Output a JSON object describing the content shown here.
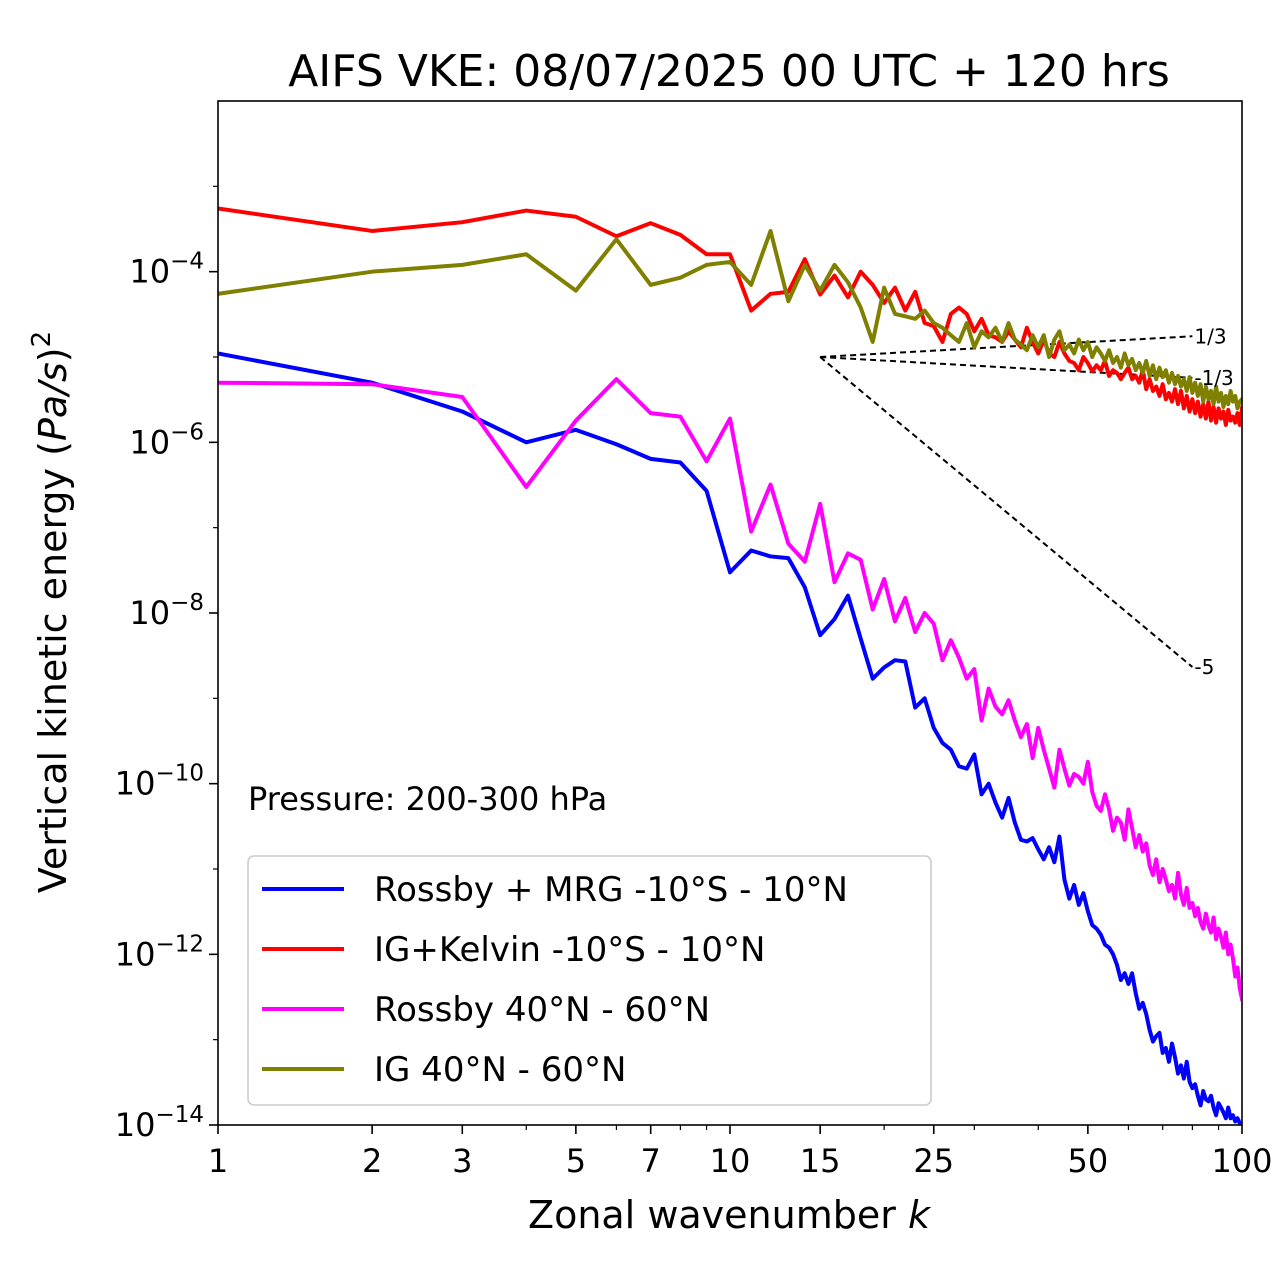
{
  "chart_data": {
    "type": "line",
    "title": "AIFS VKE: 08/07/2025 00 UTC + 120 hrs",
    "xlabel_text": "Zonal wavenumber ",
    "xlabel_var": "k",
    "ylabel_text": "Vertical kinetic energy (",
    "ylabel_var": "Pa/s",
    "ylabel_close": ")",
    "ylabel_exp": "2",
    "annotation": "Pressure: 200-300 hPa",
    "xscale": "log",
    "yscale": "log",
    "xlim": [
      1,
      100
    ],
    "ylim": [
      1e-14,
      0.01
    ],
    "x_ticks": [
      1,
      2,
      3,
      5,
      7,
      10,
      15,
      25,
      50,
      100
    ],
    "x_tick_labels": [
      "1",
      "2",
      "3",
      "5",
      "7",
      "10",
      "15",
      "25",
      "50",
      "100"
    ],
    "y_ticks": [
      {
        "value": 0.0001,
        "base": "10",
        "exp": "−4"
      },
      {
        "value": 1e-06,
        "base": "10",
        "exp": "−6"
      },
      {
        "value": 1e-08,
        "base": "10",
        "exp": "−8"
      },
      {
        "value": 1e-10,
        "base": "10",
        "exp": "−10"
      },
      {
        "value": 1e-12,
        "base": "10",
        "exp": "−12"
      },
      {
        "value": 1e-14,
        "base": "10",
        "exp": "−14"
      }
    ],
    "legend_position": "lower-left",
    "grid": false,
    "series": [
      {
        "name": "Rossby + MRG -10°S - 10°N",
        "color": "#0000ff",
        "x": [
          1,
          2,
          3,
          4,
          5,
          6,
          7,
          8,
          9,
          10,
          11,
          12,
          13,
          14,
          15,
          16,
          17,
          18,
          19,
          20,
          21,
          22,
          23,
          24,
          25,
          26,
          27,
          28,
          29,
          30,
          31,
          32,
          33,
          34,
          35,
          36,
          37,
          38,
          39,
          40,
          41,
          42,
          43,
          44,
          45,
          46,
          47,
          48,
          49,
          50,
          51,
          52,
          53,
          54,
          55,
          56,
          57,
          58,
          59,
          60,
          61,
          62,
          63,
          64,
          65,
          66,
          67,
          68,
          69,
          70,
          71,
          72,
          73,
          74,
          75,
          76,
          77,
          78,
          79,
          80,
          81,
          82,
          83,
          84,
          85,
          86,
          87,
          88,
          89,
          90,
          91,
          92,
          93,
          94,
          95,
          96,
          97,
          98,
          99,
          100
        ],
        "y": [
          1.1e-05,
          5e-06,
          2.3e-06,
          1e-06,
          1.4e-06,
          9.5e-07,
          6.4e-07,
          5.8e-07,
          2.7e-07,
          3e-08,
          5.4e-08,
          4.6e-08,
          4.4e-08,
          2e-08,
          5.5e-09,
          8.5e-09,
          1.6e-08,
          5e-09,
          1.7e-09,
          2.3e-09,
          2.8e-09,
          2.7e-09,
          7.8e-10,
          1e-09,
          4.5e-10,
          3e-10,
          2.5e-10,
          1.6e-10,
          1.5e-10,
          2.2e-10,
          7.5e-11,
          1e-10,
          6e-11,
          4e-11,
          6.8e-11,
          3.5e-11,
          2.2e-11,
          2.1e-11,
          2.3e-11,
          1.7e-11,
          1.3e-11,
          1.8e-11,
          1.2e-11,
          2.4e-11,
          7.5e-12,
          4.5e-12,
          6.5e-12,
          3.8e-12,
          5.2e-12,
          3.2e-12,
          2.2e-12,
          2e-12,
          1.7e-12,
          1.3e-12,
          1.2e-12,
          1e-12,
          7.5e-13,
          5e-13,
          6e-13,
          4.5e-13,
          6e-13,
          3.5e-13,
          2.3e-13,
          2.7e-13,
          2e-13,
          1.3e-13,
          9.5e-14,
          1.1e-13,
          1.2e-13,
          7e-14,
          8e-14,
          5.5e-14,
          9e-14,
          6.2e-14,
          4e-14,
          5e-14,
          3.5e-14,
          5.5e-14,
          3.2e-14,
          2.7e-14,
          3e-14,
          2.2e-14,
          1.7e-14,
          2.5e-14,
          2e-14,
          1.9e-14,
          2.2e-14,
          1.6e-14,
          1.3e-14,
          1.8e-14,
          1.6e-14,
          1.4e-14,
          1.2e-14,
          1.6e-14,
          1.2e-14,
          1.3e-14,
          1.1e-14,
          1.2e-14,
          1.05e-14,
          1e-14
        ]
      },
      {
        "name": "IG+Kelvin -10°S - 10°N",
        "color": "#ff0000",
        "x": [
          1,
          2,
          3,
          4,
          5,
          6,
          7,
          8,
          9,
          10,
          11,
          12,
          13,
          14,
          15,
          16,
          17,
          18,
          19,
          20,
          21,
          22,
          23,
          24,
          25,
          26,
          27,
          28,
          29,
          30,
          31,
          32,
          33,
          34,
          35,
          36,
          37,
          38,
          39,
          40,
          41,
          42,
          43,
          44,
          45,
          46,
          47,
          48,
          49,
          50,
          51,
          52,
          53,
          54,
          55,
          56,
          57,
          58,
          59,
          60,
          61,
          62,
          63,
          64,
          65,
          66,
          67,
          68,
          69,
          70,
          71,
          72,
          73,
          74,
          75,
          76,
          77,
          78,
          79,
          80,
          81,
          82,
          83,
          84,
          85,
          86,
          87,
          88,
          89,
          90,
          91,
          92,
          93,
          94,
          95,
          96,
          97,
          98,
          99,
          100
        ],
        "y": [
          0.00055,
          0.0003,
          0.00038,
          0.00052,
          0.00044,
          0.00026,
          0.00037,
          0.00027,
          0.00016,
          0.00016,
          3.5e-05,
          5.5e-05,
          5.8e-05,
          0.00014,
          5.4e-05,
          9e-05,
          5e-05,
          0.0001,
          7e-05,
          4.3e-05,
          6.5e-05,
          3.5e-05,
          5.8e-05,
          2.5e-05,
          2.3e-05,
          1.5e-05,
          3.2e-05,
          3.8e-05,
          3.2e-05,
          2e-05,
          2.8e-05,
          1.8e-05,
          1.7e-05,
          1.5e-05,
          2e-05,
          1.6e-05,
          1.3e-05,
          2.2e-05,
          1.5e-05,
          1.1e-05,
          1.6e-05,
          1.1e-05,
          1e-05,
          1.5e-05,
          1.1e-05,
          9e-06,
          8.5e-06,
          7e-06,
          1e-05,
          8.5e-06,
          6.8e-06,
          8e-06,
          7e-06,
          9e-06,
          6e-06,
          7e-06,
          6.5e-06,
          5.5e-06,
          6.5e-06,
          7.5e-06,
          5.5e-06,
          6e-06,
          5e-06,
          7e-06,
          4.2e-06,
          5.5e-06,
          4e-06,
          4.5e-06,
          3.5e-06,
          4.8e-06,
          3.2e-06,
          3.8e-06,
          3e-06,
          4.2e-06,
          2.8e-06,
          4e-06,
          2.5e-06,
          3.5e-06,
          2.3e-06,
          3.2e-06,
          2.2e-06,
          3e-06,
          2e-06,
          2.8e-06,
          1.9e-06,
          3e-06,
          1.8e-06,
          2.6e-06,
          1.7e-06,
          2.5e-06,
          1.9e-06,
          2.3e-06,
          1.6e-06,
          2.4e-06,
          1.8e-06,
          2e-06,
          1.7e-06,
          2.2e-06,
          1.6e-06,
          2.5e-06
        ]
      },
      {
        "name": "Rossby 40°N - 60°N",
        "color": "#ff00ff",
        "x": [
          1,
          2,
          3,
          4,
          5,
          6,
          7,
          8,
          9,
          10,
          11,
          12,
          13,
          14,
          15,
          16,
          17,
          18,
          19,
          20,
          21,
          22,
          23,
          24,
          25,
          26,
          27,
          28,
          29,
          30,
          31,
          32,
          33,
          34,
          35,
          36,
          37,
          38,
          39,
          40,
          41,
          42,
          43,
          44,
          45,
          46,
          47,
          48,
          49,
          50,
          51,
          52,
          53,
          54,
          55,
          56,
          57,
          58,
          59,
          60,
          61,
          62,
          63,
          64,
          65,
          66,
          67,
          68,
          69,
          70,
          71,
          72,
          73,
          74,
          75,
          76,
          77,
          78,
          79,
          80,
          81,
          82,
          83,
          84,
          85,
          86,
          87,
          88,
          89,
          90,
          91,
          92,
          93,
          94,
          95,
          96,
          97,
          98,
          99,
          100
        ],
        "y": [
          5e-06,
          4.8e-06,
          3.4e-06,
          3e-07,
          1.8e-06,
          5.5e-06,
          2.2e-06,
          2e-06,
          6e-07,
          1.9e-06,
          9e-08,
          3.2e-07,
          6.5e-08,
          4e-08,
          1.9e-07,
          2.3e-08,
          5e-08,
          4.2e-08,
          1.1e-08,
          2.5e-08,
          8e-09,
          1.5e-08,
          6e-09,
          1e-08,
          7.5e-09,
          2.8e-09,
          4.8e-09,
          3e-09,
          1.7e-09,
          2.2e-09,
          5.5e-10,
          1.3e-09,
          8e-10,
          6.5e-10,
          9.5e-10,
          5.5e-10,
          3.5e-10,
          5e-10,
          2e-10,
          4.5e-10,
          2.5e-10,
          1.5e-10,
          9e-11,
          2.5e-10,
          1.5e-10,
          9.5e-11,
          1.3e-10,
          1.2e-10,
          1e-10,
          1.8e-10,
          8e-11,
          5.5e-11,
          4.8e-11,
          7.5e-11,
          5e-11,
          2.8e-11,
          4e-11,
          3.5e-11,
          2.2e-11,
          5e-11,
          3e-11,
          1.8e-11,
          2.5e-11,
          1.6e-11,
          2e-11,
          1.1e-11,
          8.5e-12,
          1.3e-11,
          7e-12,
          1e-11,
          7.5e-12,
          5.5e-12,
          6.5e-12,
          4.5e-12,
          9e-12,
          5e-12,
          3.8e-12,
          6e-12,
          3.5e-12,
          4e-12,
          2.8e-12,
          3.5e-12,
          2.4e-12,
          2e-12,
          3e-12,
          2.2e-12,
          1.8e-12,
          2.7e-12,
          1.5e-12,
          2e-12,
          1.6e-12,
          1.2e-12,
          1.8e-12,
          1e-12,
          1.3e-12,
          9e-13,
          5.5e-13,
          7e-13,
          4e-13,
          3e-13
        ]
      },
      {
        "name": "IG 40°N - 60°N",
        "color": "#808000",
        "x": [
          1,
          2,
          3,
          4,
          5,
          6,
          7,
          8,
          9,
          10,
          11,
          12,
          13,
          14,
          15,
          16,
          17,
          18,
          19,
          20,
          21,
          22,
          23,
          24,
          25,
          26,
          27,
          28,
          29,
          30,
          31,
          32,
          33,
          34,
          35,
          36,
          37,
          38,
          39,
          40,
          41,
          42,
          43,
          44,
          45,
          46,
          47,
          48,
          49,
          50,
          51,
          52,
          53,
          54,
          55,
          56,
          57,
          58,
          59,
          60,
          61,
          62,
          63,
          64,
          65,
          66,
          67,
          68,
          69,
          70,
          71,
          72,
          73,
          74,
          75,
          76,
          77,
          78,
          79,
          80,
          81,
          82,
          83,
          84,
          85,
          86,
          87,
          88,
          89,
          90,
          91,
          92,
          93,
          94,
          95,
          96,
          97,
          98,
          99,
          100
        ],
        "y": [
          5.5e-05,
          0.0001,
          0.00012,
          0.00016,
          6e-05,
          0.00024,
          7e-05,
          8.5e-05,
          0.00012,
          0.00013,
          7e-05,
          0.0003,
          4.5e-05,
          0.00012,
          6e-05,
          0.00012,
          7.5e-05,
          3.8e-05,
          1.5e-05,
          6.5e-05,
          3.2e-05,
          3e-05,
          2.8e-05,
          3.5e-05,
          2.5e-05,
          2.2e-05,
          1.8e-05,
          1.5e-05,
          2.5e-05,
          1.3e-05,
          2e-05,
          1.7e-05,
          2.2e-05,
          1.5e-05,
          2.5e-05,
          1.6e-05,
          1.4e-05,
          1.2e-05,
          1.8e-05,
          1.3e-05,
          1.8e-05,
          1e-05,
          1.6e-05,
          2e-05,
          1.2e-05,
          1.4e-05,
          1.1e-05,
          1.6e-05,
          1.2e-05,
          1.5e-05,
          1e-05,
          1.3e-05,
          1.1e-05,
          9e-06,
          1.2e-05,
          8.5e-06,
          1e-05,
          7.5e-06,
          1.1e-05,
          8e-06,
          9.5e-06,
          7e-06,
          8.5e-06,
          6.5e-06,
          9e-06,
          6e-06,
          8e-06,
          5.5e-06,
          7.5e-06,
          5.8e-06,
          7e-06,
          5e-06,
          6.5e-06,
          4.8e-06,
          6e-06,
          4.5e-06,
          5.5e-06,
          4e-06,
          5.8e-06,
          3.8e-06,
          5e-06,
          3.5e-06,
          4.8e-06,
          3e-06,
          4.5e-06,
          3.2e-06,
          4e-06,
          2.8e-06,
          4.5e-06,
          3e-06,
          3.8e-06,
          2.6e-06,
          3.5e-06,
          2.8e-06,
          4e-06,
          3e-06,
          3.5e-06,
          2.5e-06,
          3e-06,
          3.2e-06
        ]
      }
    ],
    "reference_lines": [
      {
        "label": "1/3",
        "slope": "1/3",
        "x": [
          15,
          80
        ],
        "y": [
          1e-05,
          1.75e-05
        ],
        "label_x": 80,
        "label_y": 1.75e-05
      },
      {
        "label": "-1/3",
        "slope": "-1/3",
        "x": [
          15,
          80
        ],
        "y": [
          1e-05,
          5.7e-06
        ],
        "label_x": 80,
        "label_y": 5.7e-06
      },
      {
        "label": "-5",
        "slope": "-5",
        "x": [
          15,
          80
        ],
        "y": [
          1e-05,
          2.33e-09
        ],
        "label_x": 80,
        "label_y": 2.33e-09
      }
    ]
  }
}
